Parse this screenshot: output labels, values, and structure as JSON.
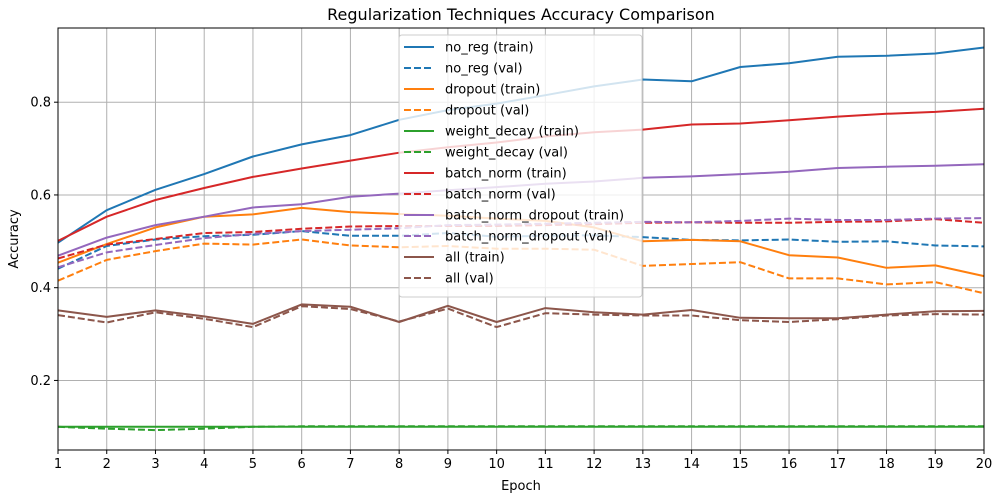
{
  "chart_data": {
    "type": "line",
    "title": "Regularization Techniques Accuracy Comparison",
    "xlabel": "Epoch",
    "ylabel": "Accuracy",
    "x": [
      1,
      2,
      3,
      4,
      5,
      6,
      7,
      8,
      9,
      10,
      11,
      12,
      13,
      14,
      15,
      16,
      17,
      18,
      19,
      20
    ],
    "xlim": [
      1,
      20
    ],
    "ylim": [
      0.05,
      0.96
    ],
    "xticks": [
      1,
      2,
      3,
      4,
      5,
      6,
      7,
      8,
      9,
      10,
      11,
      12,
      13,
      14,
      15,
      16,
      17,
      18,
      19,
      20
    ],
    "yticks": [
      0.2,
      0.4,
      0.6,
      0.8
    ],
    "ytick_labels": [
      "0.2",
      "0.4",
      "0.6",
      "0.8"
    ],
    "grid": true,
    "legend_position": "top-center",
    "series": [
      {
        "name": "no_reg (train)",
        "color": "#1f77b4",
        "dash": "solid",
        "values": [
          0.497,
          0.567,
          0.611,
          0.645,
          0.683,
          0.709,
          0.729,
          0.762,
          0.783,
          0.797,
          0.815,
          0.834,
          0.849,
          0.845,
          0.876,
          0.884,
          0.898,
          0.9,
          0.905,
          0.918
        ]
      },
      {
        "name": "no_reg (val)",
        "color": "#1f77b4",
        "dash": "dashed",
        "values": [
          0.441,
          0.49,
          0.504,
          0.511,
          0.514,
          0.522,
          0.512,
          0.512,
          0.518,
          0.51,
          0.512,
          0.513,
          0.509,
          0.503,
          0.502,
          0.504,
          0.499,
          0.5,
          0.491,
          0.489
        ]
      },
      {
        "name": "dropout (train)",
        "color": "#ff7f0e",
        "dash": "solid",
        "values": [
          0.454,
          0.494,
          0.53,
          0.553,
          0.558,
          0.572,
          0.563,
          0.559,
          0.555,
          0.549,
          0.544,
          0.53,
          0.5,
          0.503,
          0.5,
          0.47,
          0.465,
          0.443,
          0.448,
          0.425
        ]
      },
      {
        "name": "dropout (val)",
        "color": "#ff7f0e",
        "dash": "dashed",
        "values": [
          0.415,
          0.46,
          0.479,
          0.495,
          0.493,
          0.504,
          0.491,
          0.487,
          0.49,
          0.484,
          0.484,
          0.482,
          0.447,
          0.451,
          0.455,
          0.42,
          0.42,
          0.407,
          0.412,
          0.388
        ]
      },
      {
        "name": "weight_decay (train)",
        "color": "#2ca02c",
        "dash": "solid",
        "values": [
          0.1,
          0.1,
          0.1,
          0.1,
          0.1,
          0.1,
          0.1,
          0.1,
          0.1,
          0.1,
          0.1,
          0.1,
          0.1,
          0.1,
          0.1,
          0.1,
          0.1,
          0.1,
          0.1,
          0.1
        ]
      },
      {
        "name": "weight_decay (val)",
        "color": "#2ca02c",
        "dash": "dashed",
        "values": [
          0.1,
          0.096,
          0.093,
          0.096,
          0.1,
          0.101,
          0.101,
          0.101,
          0.101,
          0.101,
          0.101,
          0.101,
          0.101,
          0.101,
          0.101,
          0.101,
          0.101,
          0.101,
          0.101,
          0.101
        ]
      },
      {
        "name": "batch_norm (train)",
        "color": "#d62728",
        "dash": "solid",
        "values": [
          0.501,
          0.553,
          0.589,
          0.615,
          0.639,
          0.657,
          0.674,
          0.691,
          0.703,
          0.713,
          0.726,
          0.735,
          0.741,
          0.752,
          0.754,
          0.761,
          0.769,
          0.775,
          0.779,
          0.786
        ]
      },
      {
        "name": "batch_norm (val)",
        "color": "#d62728",
        "dash": "dashed",
        "values": [
          0.463,
          0.493,
          0.505,
          0.518,
          0.52,
          0.527,
          0.532,
          0.533,
          0.533,
          0.533,
          0.535,
          0.537,
          0.54,
          0.541,
          0.54,
          0.54,
          0.542,
          0.543,
          0.548,
          0.54
        ]
      },
      {
        "name": "batch_norm_dropout (train)",
        "color": "#9467bd",
        "dash": "solid",
        "values": [
          0.469,
          0.508,
          0.535,
          0.553,
          0.573,
          0.58,
          0.596,
          0.603,
          0.61,
          0.617,
          0.624,
          0.629,
          0.637,
          0.64,
          0.645,
          0.65,
          0.658,
          0.661,
          0.663,
          0.666
        ]
      },
      {
        "name": "batch_norm_dropout (val)",
        "color": "#9467bd",
        "dash": "dashed",
        "values": [
          0.444,
          0.476,
          0.492,
          0.507,
          0.516,
          0.522,
          0.525,
          0.528,
          0.535,
          0.536,
          0.538,
          0.54,
          0.542,
          0.541,
          0.544,
          0.549,
          0.546,
          0.546,
          0.549,
          0.55
        ]
      },
      {
        "name": "all (train)",
        "color": "#8c564b",
        "dash": "solid",
        "values": [
          0.351,
          0.337,
          0.351,
          0.338,
          0.322,
          0.364,
          0.359,
          0.326,
          0.361,
          0.326,
          0.356,
          0.347,
          0.342,
          0.352,
          0.335,
          0.334,
          0.334,
          0.342,
          0.349,
          0.35
        ]
      },
      {
        "name": "all (val)",
        "color": "#8c564b",
        "dash": "dashed",
        "values": [
          0.341,
          0.325,
          0.347,
          0.333,
          0.315,
          0.36,
          0.354,
          0.327,
          0.355,
          0.315,
          0.345,
          0.342,
          0.34,
          0.34,
          0.33,
          0.326,
          0.332,
          0.34,
          0.343,
          0.342
        ]
      }
    ]
  }
}
